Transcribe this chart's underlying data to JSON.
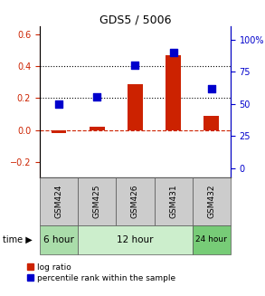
{
  "title": "GDS5 / 5006",
  "samples": [
    "GSM424",
    "GSM425",
    "GSM426",
    "GSM431",
    "GSM432"
  ],
  "log_ratio": [
    -0.02,
    0.02,
    0.29,
    0.47,
    0.09
  ],
  "percentile_rank": [
    50,
    55,
    80,
    90,
    62
  ],
  "ylim_left": [
    -0.3,
    0.65
  ],
  "ylim_right": [
    -7.5,
    110
  ],
  "left_ticks": [
    -0.2,
    0.0,
    0.2,
    0.4,
    0.6
  ],
  "right_ticks": [
    0,
    25,
    50,
    75,
    100
  ],
  "bar_color": "#cc2200",
  "dot_color": "#0000cc",
  "hline_color": "#cc2200",
  "background_color": "#ffffff",
  "bar_width": 0.4,
  "dot_size": 40,
  "time_groups": [
    {
      "label": "6 hour",
      "start": 0,
      "end": 1,
      "color": "#aaddaa"
    },
    {
      "label": "12 hour",
      "start": 1,
      "end": 4,
      "color": "#cceecc"
    },
    {
      "label": "24 hour",
      "start": 4,
      "end": 5,
      "color": "#77cc77"
    }
  ],
  "sample_bg_color": "#cccccc"
}
